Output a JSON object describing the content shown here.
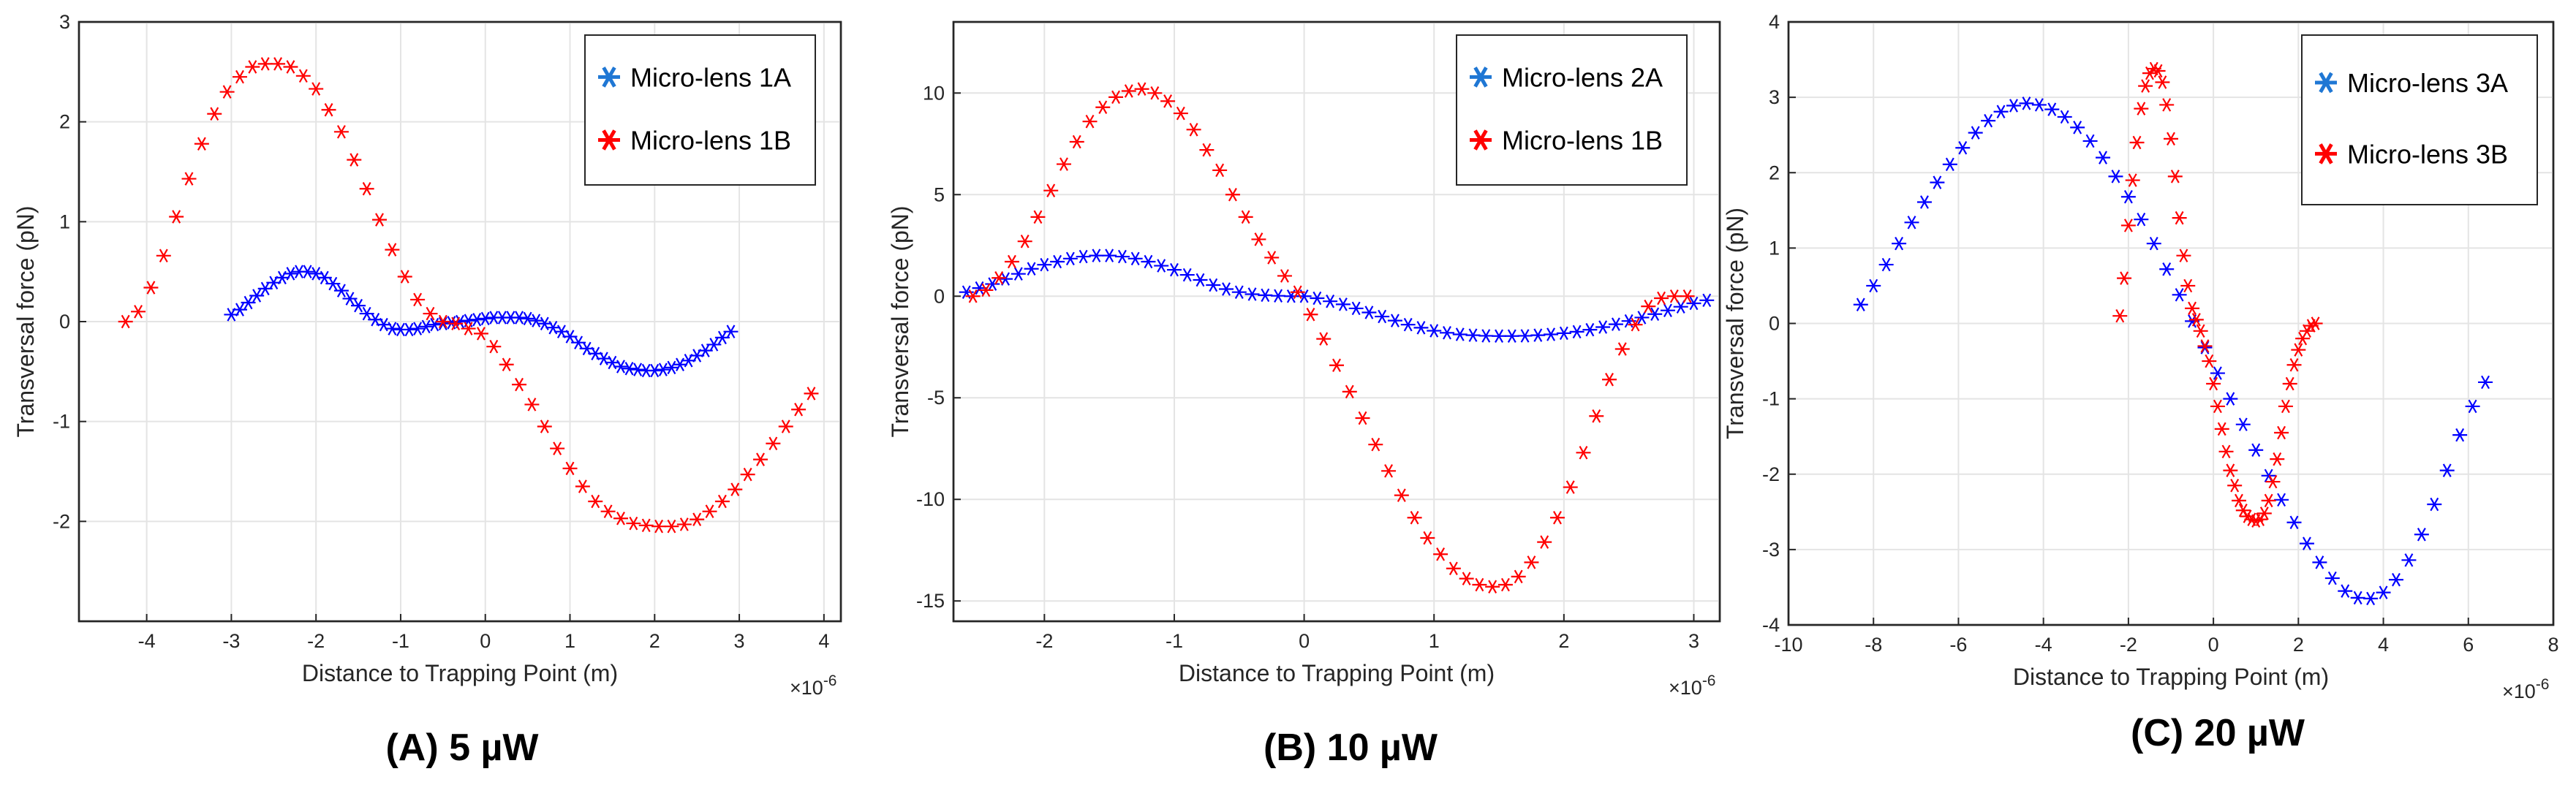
{
  "chart_data": [
    {
      "type": "scatter",
      "panel_label": "(A) 5 µW",
      "xlabel": "Distance to Trapping Point (m)",
      "ylabel": "Transversal force (pN)",
      "x_exponent": "×10",
      "x_exponent_power": "-6",
      "xlim": [
        -4.8,
        4.2
      ],
      "ylim": [
        -3,
        3
      ],
      "xticks": [
        -4,
        -3,
        -2,
        -1,
        0,
        1,
        2,
        3,
        4
      ],
      "yticks": [
        -2,
        -1,
        0,
        1,
        2,
        3
      ],
      "ytick_labels": [
        "-2",
        "-1",
        "0",
        "1",
        "2",
        "3"
      ],
      "xtick_labels": [
        "-4",
        "-3",
        "-2",
        "-1",
        "0",
        "1",
        "2",
        "3",
        "4"
      ],
      "legend": {
        "position": "top-right",
        "entries": [
          "Micro-lens 1A",
          "Micro-lens 1B"
        ]
      },
      "series": [
        {
          "name": "Micro-lens 1A",
          "color": "#0000ff",
          "x": [
            -3.0,
            -2.9,
            -2.8,
            -2.7,
            -2.6,
            -2.5,
            -2.4,
            -2.3,
            -2.2,
            -2.1,
            -2.0,
            -1.9,
            -1.8,
            -1.7,
            -1.6,
            -1.5,
            -1.4,
            -1.3,
            -1.2,
            -1.1,
            -1.0,
            -0.9,
            -0.8,
            -0.7,
            -0.6,
            -0.5,
            -0.4,
            -0.3,
            -0.2,
            -0.1,
            0.0,
            0.1,
            0.2,
            0.3,
            0.4,
            0.5,
            0.6,
            0.7,
            0.8,
            0.9,
            1.0,
            1.1,
            1.2,
            1.3,
            1.4,
            1.5,
            1.6,
            1.7,
            1.8,
            1.9,
            2.0,
            2.1,
            2.2,
            2.3,
            2.4,
            2.5,
            2.6,
            2.7,
            2.8,
            2.9
          ],
          "y": [
            0.07,
            0.12,
            0.19,
            0.26,
            0.33,
            0.39,
            0.44,
            0.48,
            0.5,
            0.5,
            0.48,
            0.44,
            0.38,
            0.31,
            0.23,
            0.16,
            0.08,
            0.02,
            -0.03,
            -0.07,
            -0.08,
            -0.08,
            -0.07,
            -0.05,
            -0.03,
            -0.02,
            -0.01,
            0.0,
            0.01,
            0.02,
            0.03,
            0.04,
            0.04,
            0.04,
            0.04,
            0.03,
            0.01,
            -0.02,
            -0.06,
            -0.1,
            -0.15,
            -0.21,
            -0.27,
            -0.32,
            -0.37,
            -0.41,
            -0.45,
            -0.47,
            -0.48,
            -0.49,
            -0.49,
            -0.48,
            -0.46,
            -0.43,
            -0.39,
            -0.34,
            -0.29,
            -0.23,
            -0.16,
            -0.1
          ]
        },
        {
          "name": "Micro-lens 1B",
          "color": "#ff0000",
          "x": [
            -4.25,
            -4.1,
            -3.95,
            -3.8,
            -3.65,
            -3.5,
            -3.35,
            -3.2,
            -3.05,
            -2.9,
            -2.75,
            -2.6,
            -2.45,
            -2.3,
            -2.15,
            -2.0,
            -1.85,
            -1.7,
            -1.55,
            -1.4,
            -1.25,
            -1.1,
            -0.95,
            -0.8,
            -0.65,
            -0.5,
            -0.35,
            -0.2,
            -0.05,
            0.1,
            0.25,
            0.4,
            0.55,
            0.7,
            0.85,
            1.0,
            1.15,
            1.3,
            1.45,
            1.6,
            1.75,
            1.9,
            2.05,
            2.2,
            2.35,
            2.5,
            2.65,
            2.8,
            2.95,
            3.1,
            3.25,
            3.4,
            3.55,
            3.7,
            3.85
          ],
          "y": [
            0.0,
            0.1,
            0.34,
            0.66,
            1.05,
            1.43,
            1.78,
            2.08,
            2.3,
            2.45,
            2.55,
            2.58,
            2.58,
            2.55,
            2.46,
            2.33,
            2.12,
            1.9,
            1.62,
            1.33,
            1.02,
            0.72,
            0.45,
            0.22,
            0.08,
            0.0,
            -0.02,
            -0.07,
            -0.12,
            -0.25,
            -0.43,
            -0.63,
            -0.83,
            -1.05,
            -1.27,
            -1.47,
            -1.65,
            -1.8,
            -1.9,
            -1.97,
            -2.02,
            -2.04,
            -2.05,
            -2.05,
            -2.03,
            -1.98,
            -1.9,
            -1.8,
            -1.68,
            -1.53,
            -1.38,
            -1.22,
            -1.05,
            -0.88,
            -0.72
          ]
        }
      ]
    },
    {
      "type": "scatter",
      "panel_label": "(B) 10 µW",
      "xlabel": "Distance to Trapping Point (m)",
      "ylabel": "Transversal force (pN)",
      "x_exponent": "×10",
      "x_exponent_power": "-6",
      "xlim": [
        -2.7,
        3.2
      ],
      "ylim": [
        -16,
        13.5
      ],
      "xticks": [
        -2,
        -1,
        0,
        1,
        2,
        3
      ],
      "yticks": [
        -15,
        -10,
        -5,
        0,
        5,
        10
      ],
      "ytick_labels": [
        "-15",
        "-10",
        "-5",
        "0",
        "5",
        "10"
      ],
      "xtick_labels": [
        "-2",
        "-1",
        "0",
        "1",
        "2",
        "3"
      ],
      "legend": {
        "position": "top-right",
        "entries": [
          "Micro-lens 2A",
          "Micro-lens 1B"
        ]
      },
      "series": [
        {
          "name": "Micro-lens 2A",
          "color": "#0000ff",
          "x": [
            -2.6,
            -2.5,
            -2.4,
            -2.3,
            -2.2,
            -2.1,
            -2.0,
            -1.9,
            -1.8,
            -1.7,
            -1.6,
            -1.5,
            -1.4,
            -1.3,
            -1.2,
            -1.1,
            -1.0,
            -0.9,
            -0.8,
            -0.7,
            -0.6,
            -0.5,
            -0.4,
            -0.3,
            -0.2,
            -0.1,
            0.0,
            0.1,
            0.2,
            0.3,
            0.4,
            0.5,
            0.6,
            0.7,
            0.8,
            0.9,
            1.0,
            1.1,
            1.2,
            1.3,
            1.4,
            1.5,
            1.6,
            1.7,
            1.8,
            1.9,
            2.0,
            2.1,
            2.2,
            2.3,
            2.4,
            2.5,
            2.6,
            2.7,
            2.8,
            2.9,
            3.0,
            3.1
          ],
          "y": [
            0.2,
            0.4,
            0.6,
            0.85,
            1.1,
            1.35,
            1.55,
            1.7,
            1.85,
            1.95,
            2.0,
            2.0,
            1.95,
            1.85,
            1.7,
            1.5,
            1.3,
            1.05,
            0.8,
            0.55,
            0.35,
            0.2,
            0.1,
            0.05,
            0.02,
            0.0,
            0.0,
            -0.1,
            -0.25,
            -0.4,
            -0.6,
            -0.8,
            -1.0,
            -1.2,
            -1.4,
            -1.55,
            -1.7,
            -1.8,
            -1.88,
            -1.92,
            -1.95,
            -1.96,
            -1.96,
            -1.95,
            -1.92,
            -1.88,
            -1.82,
            -1.75,
            -1.65,
            -1.52,
            -1.38,
            -1.22,
            -1.05,
            -0.88,
            -0.7,
            -0.52,
            -0.35,
            -0.2
          ]
        },
        {
          "name": "Micro-lens 1B",
          "color": "#ff0000",
          "x": [
            -2.55,
            -2.45,
            -2.35,
            -2.25,
            -2.15,
            -2.05,
            -1.95,
            -1.85,
            -1.75,
            -1.65,
            -1.55,
            -1.45,
            -1.35,
            -1.25,
            -1.15,
            -1.05,
            -0.95,
            -0.85,
            -0.75,
            -0.65,
            -0.55,
            -0.45,
            -0.35,
            -0.25,
            -0.15,
            -0.05,
            0.05,
            0.15,
            0.25,
            0.35,
            0.45,
            0.55,
            0.65,
            0.75,
            0.85,
            0.95,
            1.05,
            1.15,
            1.25,
            1.35,
            1.45,
            1.55,
            1.65,
            1.75,
            1.85,
            1.95,
            2.05,
            2.15,
            2.25,
            2.35,
            2.45,
            2.55,
            2.65,
            2.75,
            2.85,
            2.95
          ],
          "y": [
            0.0,
            0.3,
            0.9,
            1.7,
            2.7,
            3.9,
            5.2,
            6.5,
            7.6,
            8.6,
            9.3,
            9.8,
            10.1,
            10.2,
            10.0,
            9.6,
            9.0,
            8.2,
            7.2,
            6.2,
            5.0,
            3.9,
            2.8,
            1.9,
            1.0,
            0.2,
            -0.9,
            -2.1,
            -3.4,
            -4.7,
            -6.0,
            -7.3,
            -8.6,
            -9.8,
            -10.9,
            -11.9,
            -12.7,
            -13.4,
            -13.9,
            -14.2,
            -14.3,
            -14.2,
            -13.8,
            -13.1,
            -12.1,
            -10.9,
            -9.4,
            -7.7,
            -5.9,
            -4.1,
            -2.6,
            -1.4,
            -0.5,
            -0.1,
            0.0,
            0.0
          ]
        }
      ]
    },
    {
      "type": "scatter",
      "panel_label": "(C) 20 µW",
      "xlabel": "Distance to Trapping Point (m)",
      "ylabel": "Transversal force (pN)",
      "x_exponent": "×10",
      "x_exponent_power": "-6",
      "xlim": [
        -10,
        8
      ],
      "ylim": [
        -4,
        4
      ],
      "xticks": [
        -10,
        -8,
        -6,
        -4,
        -2,
        0,
        2,
        4,
        6,
        8
      ],
      "yticks": [
        -4,
        -3,
        -2,
        -1,
        0,
        1,
        2,
        3,
        4
      ],
      "ytick_labels": [
        "-4",
        "-3",
        "-2",
        "-1",
        "0",
        "1",
        "2",
        "3",
        "4"
      ],
      "xtick_labels": [
        "-10",
        "-8",
        "-6",
        "-4",
        "-2",
        "0",
        "2",
        "4",
        "6",
        "8"
      ],
      "legend": {
        "position": "top-right",
        "entries": [
          "Micro-lens 3A",
          "Micro-lens 3B"
        ]
      },
      "series": [
        {
          "name": "Micro-lens 3A",
          "color": "#0000ff",
          "x": [
            -8.3,
            -8.0,
            -7.7,
            -7.4,
            -7.1,
            -6.8,
            -6.5,
            -6.2,
            -5.9,
            -5.6,
            -5.3,
            -5.0,
            -4.7,
            -4.4,
            -4.1,
            -3.8,
            -3.5,
            -3.2,
            -2.9,
            -2.6,
            -2.3,
            -2.0,
            -1.7,
            -1.4,
            -1.1,
            -0.8,
            -0.5,
            -0.2,
            0.1,
            0.4,
            0.7,
            1.0,
            1.3,
            1.6,
            1.9,
            2.2,
            2.5,
            2.8,
            3.1,
            3.4,
            3.7,
            4.0,
            4.3,
            4.6,
            4.9,
            5.2,
            5.5,
            5.8,
            6.1,
            6.4
          ],
          "y": [
            0.25,
            0.5,
            0.78,
            1.06,
            1.34,
            1.61,
            1.87,
            2.11,
            2.33,
            2.53,
            2.69,
            2.81,
            2.89,
            2.92,
            2.9,
            2.84,
            2.74,
            2.6,
            2.42,
            2.2,
            1.95,
            1.68,
            1.38,
            1.06,
            0.72,
            0.38,
            0.03,
            -0.32,
            -0.66,
            -1.0,
            -1.34,
            -1.68,
            -2.02,
            -2.34,
            -2.64,
            -2.92,
            -3.17,
            -3.38,
            -3.55,
            -3.64,
            -3.65,
            -3.57,
            -3.4,
            -3.14,
            -2.8,
            -2.4,
            -1.95,
            -1.48,
            -1.1,
            -0.78
          ]
        },
        {
          "name": "Micro-lens 3B",
          "color": "#ff0000",
          "x": [
            -2.2,
            -2.1,
            -2.0,
            -1.9,
            -1.8,
            -1.7,
            -1.6,
            -1.5,
            -1.4,
            -1.3,
            -1.2,
            -1.1,
            -1.0,
            -0.9,
            -0.8,
            -0.7,
            -0.6,
            -0.5,
            -0.4,
            -0.3,
            -0.2,
            -0.1,
            0.0,
            0.1,
            0.2,
            0.3,
            0.4,
            0.5,
            0.6,
            0.7,
            0.8,
            0.9,
            1.0,
            1.1,
            1.2,
            1.3,
            1.4,
            1.5,
            1.6,
            1.7,
            1.8,
            1.9,
            2.0,
            2.1,
            2.2,
            2.3,
            2.4
          ],
          "y": [
            0.1,
            0.6,
            1.3,
            1.9,
            2.4,
            2.85,
            3.15,
            3.32,
            3.38,
            3.35,
            3.2,
            2.9,
            2.45,
            1.95,
            1.4,
            0.9,
            0.5,
            0.2,
            0.05,
            -0.1,
            -0.3,
            -0.5,
            -0.8,
            -1.1,
            -1.4,
            -1.7,
            -1.95,
            -2.15,
            -2.35,
            -2.48,
            -2.56,
            -2.6,
            -2.62,
            -2.6,
            -2.52,
            -2.35,
            -2.1,
            -1.8,
            -1.45,
            -1.1,
            -0.8,
            -0.55,
            -0.35,
            -0.2,
            -0.1,
            -0.03,
            0.0
          ]
        }
      ]
    }
  ],
  "colors": {
    "series_a": "#0000ff",
    "legend_a": "#1f77d4",
    "series_b": "#ff0000"
  }
}
